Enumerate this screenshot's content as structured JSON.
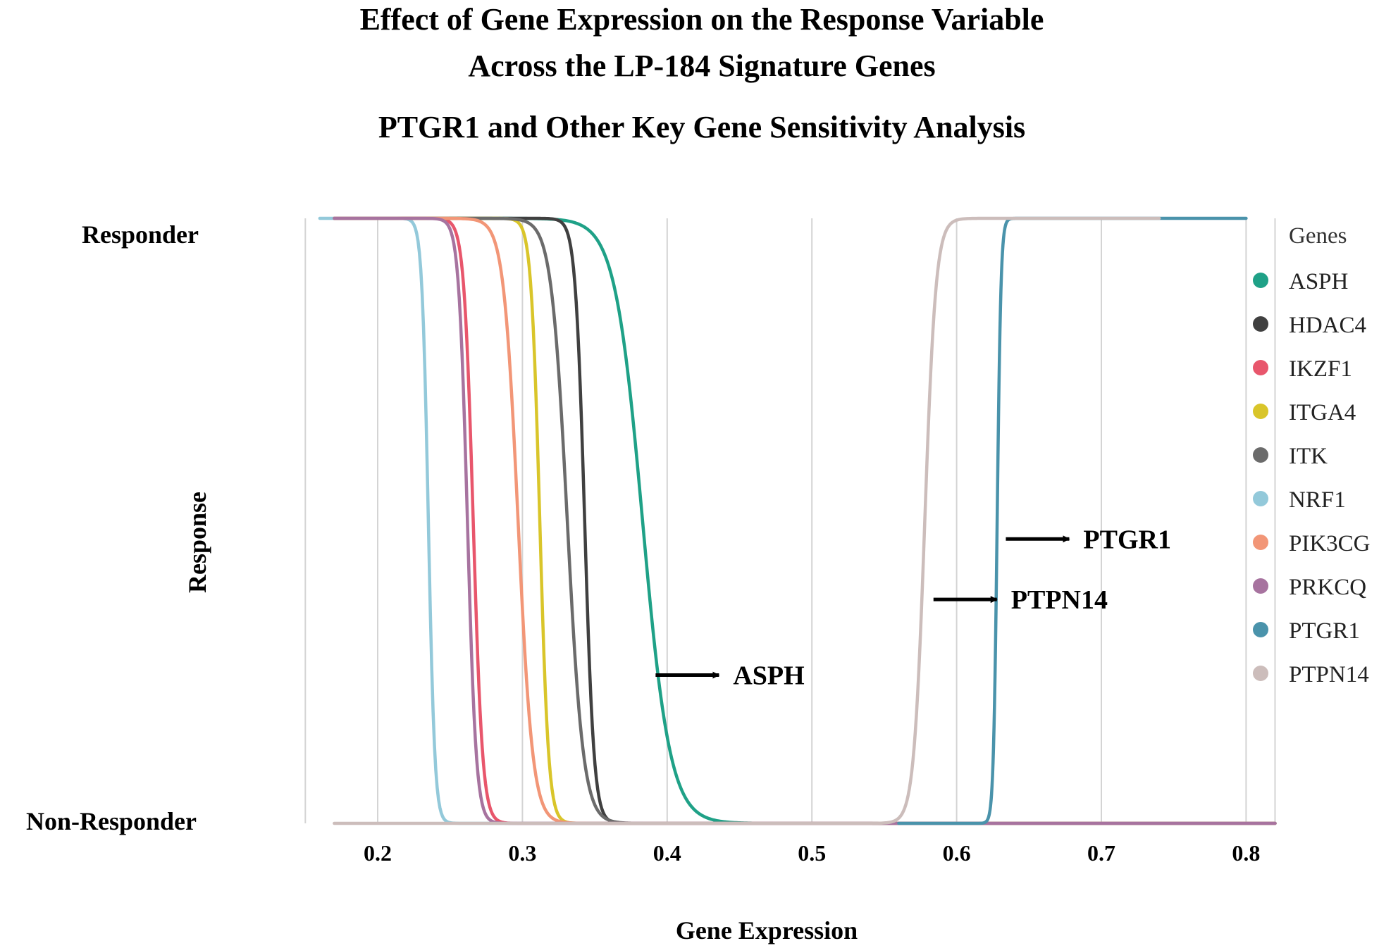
{
  "chart_data": {
    "type": "line",
    "title": [
      "Effect of Gene Expression on the Response Variable",
      "Across the LP-184 Signature Genes"
    ],
    "subtitle": "PTGR1 and Other Key Gene Sensitivity Analysis",
    "xlabel": "Gene Expression",
    "ylabel": "Response",
    "y_categories": [
      "Non-Responder",
      "Responder"
    ],
    "xlim": [
      0.15,
      0.82
    ],
    "ylim": [
      0,
      1
    ],
    "xticks": [
      0.2,
      0.3,
      0.4,
      0.5,
      0.6,
      0.7,
      0.8
    ],
    "xtick_labels": [
      "0.2",
      "0.3",
      "0.4",
      "0.5",
      "0.6",
      "0.7",
      "0.8"
    ],
    "grid": true,
    "legend_position": "right",
    "legend_title": "Genes",
    "series": [
      {
        "name": "ASPH",
        "color": "#1fa187",
        "direction": "decreasing",
        "x_range": [
          0.17,
          0.82
        ],
        "midpoint": 0.383,
        "width": 0.0095
      },
      {
        "name": "HDAC4",
        "color": "#404040",
        "direction": "decreasing",
        "x_range": [
          0.17,
          0.82
        ],
        "midpoint": 0.343,
        "width": 0.0032
      },
      {
        "name": "IKZF1",
        "color": "#e8566c",
        "direction": "decreasing",
        "x_range": [
          0.17,
          0.7
        ],
        "midpoint": 0.266,
        "width": 0.0032
      },
      {
        "name": "ITGA4",
        "color": "#d9c52a",
        "direction": "decreasing",
        "x_range": [
          0.17,
          0.82
        ],
        "midpoint": 0.312,
        "width": 0.003
      },
      {
        "name": "ITK",
        "color": "#6b6b6b",
        "direction": "decreasing",
        "x_range": [
          0.17,
          0.82
        ],
        "midpoint": 0.331,
        "width": 0.0055
      },
      {
        "name": "NRF1",
        "color": "#93c9da",
        "direction": "decreasing",
        "x_range": [
          0.16,
          0.82
        ],
        "midpoint": 0.235,
        "width": 0.0022
      },
      {
        "name": "PIK3CG",
        "color": "#f29677",
        "direction": "decreasing",
        "x_range": [
          0.17,
          0.82
        ],
        "midpoint": 0.297,
        "width": 0.005
      },
      {
        "name": "PRKCQ",
        "color": "#a7739f",
        "direction": "decreasing",
        "x_range": [
          0.17,
          0.82
        ],
        "midpoint": 0.262,
        "width": 0.003
      },
      {
        "name": "PTGR1",
        "color": "#4a93ab",
        "direction": "increasing",
        "x_range": [
          0.56,
          0.8
        ],
        "midpoint": 0.628,
        "width": 0.0013
      },
      {
        "name": "PTPN14",
        "color": "#ccbdbb",
        "direction": "increasing",
        "x_range": [
          0.17,
          0.74
        ],
        "midpoint": 0.578,
        "width": 0.0038
      }
    ],
    "annotations": [
      {
        "text": "PTGR1",
        "x": 0.634,
        "y": 0.47
      },
      {
        "text": "PTPN14",
        "x": 0.584,
        "y": 0.37
      },
      {
        "text": "ASPH",
        "x": 0.392,
        "y": 0.245
      }
    ]
  }
}
